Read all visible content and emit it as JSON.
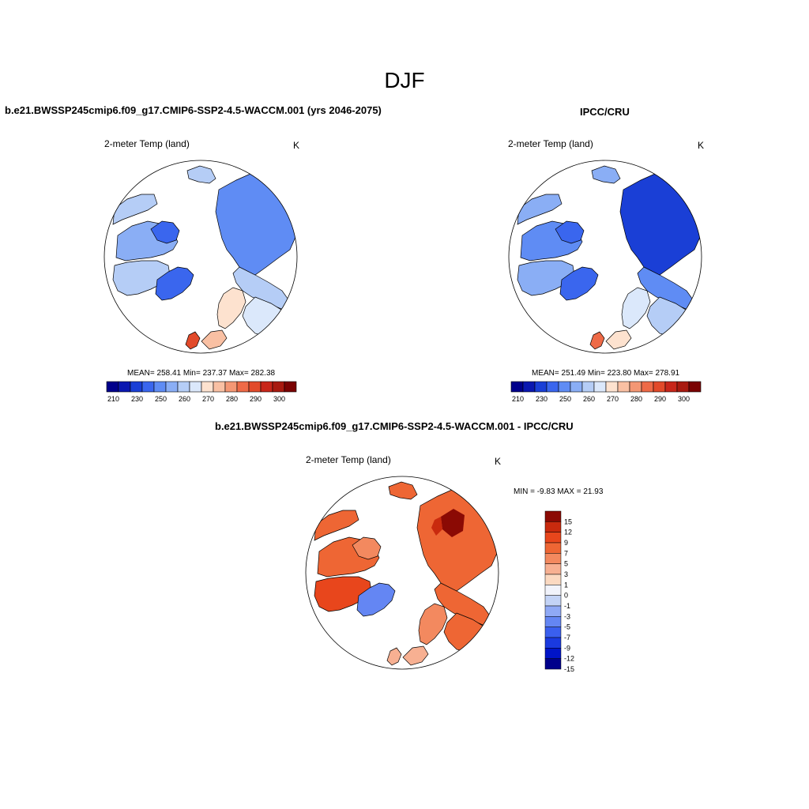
{
  "figure": {
    "title": "DJF",
    "colors": {
      "ocean": "#ffffff",
      "coast": "#000000",
      "abs_scale": [
        "#00008b",
        "#0a18b0",
        "#1a3fd6",
        "#3a66ee",
        "#5f8cf4",
        "#8aaef5",
        "#b5cdf6",
        "#dbe8fb",
        "#fde2cf",
        "#f9c0a3",
        "#f49774",
        "#ee6a47",
        "#e24a2a",
        "#c8261a",
        "#a81a10",
        "#7a0303"
      ],
      "diff_scale": [
        "#00008b",
        "#0014c8",
        "#1a3adf",
        "#3a5fee",
        "#6486f3",
        "#8fa9f5",
        "#c3d3f6",
        "#f1f3fb",
        "#fbd9c1",
        "#f7b092",
        "#f3895f",
        "#ee6634",
        "#e8461c",
        "#c92a0e",
        "#8b0a04"
      ]
    },
    "panels": [
      {
        "id": "model",
        "title": "b.e21.BWSSP245cmip6.f09_g17.CMIP6-SSP2-4.5-WACCM.001 (yrs 2046-2075)",
        "variable": "2-meter Temp (land)",
        "units": "K",
        "stats": "MEAN= 258.41  Min= 237.37  Max= 282.38"
      },
      {
        "id": "obs",
        "title": "IPCC/CRU",
        "variable": "2-meter Temp (land)",
        "units": "K",
        "stats": "MEAN= 251.49  Min= 223.80  Max= 278.91"
      },
      {
        "id": "diff",
        "title": "b.e21.BWSSP245cmip6.f09_g17.CMIP6-SSP2-4.5-WACCM.001 - IPCC/CRU",
        "variable": "2-meter Temp (land)",
        "units": "K",
        "stats": "MIN =  -9.83 MAX =  21.93"
      }
    ]
  },
  "chart_data": [
    {
      "type": "heatmap",
      "projection": "north polar stereographic",
      "title": "b.e21.BWSSP245cmip6.f09_g17.CMIP6-SSP2-4.5-WACCM.001 (yrs 2046-2075)",
      "variable": "2-meter Temp (land)",
      "units": "K",
      "mean": 258.41,
      "min": 237.37,
      "max": 282.38,
      "colorbar": {
        "orientation": "horizontal",
        "levels": [
          210,
          220,
          230,
          240,
          250,
          255,
          260,
          265,
          270,
          275,
          280,
          285,
          290,
          295,
          300
        ],
        "tick_labels": [
          "210",
          "230",
          "250",
          "260",
          "270",
          "280",
          "290",
          "300"
        ]
      }
    },
    {
      "type": "heatmap",
      "projection": "north polar stereographic",
      "title": "IPCC/CRU",
      "variable": "2-meter Temp (land)",
      "units": "K",
      "mean": 251.49,
      "min": 223.8,
      "max": 278.91,
      "colorbar": {
        "orientation": "horizontal",
        "levels": [
          210,
          220,
          230,
          240,
          250,
          255,
          260,
          265,
          270,
          275,
          280,
          285,
          290,
          295,
          300
        ],
        "tick_labels": [
          "210",
          "230",
          "250",
          "260",
          "270",
          "280",
          "290",
          "300"
        ]
      }
    },
    {
      "type": "heatmap",
      "projection": "north polar stereographic",
      "title": "b.e21.BWSSP245cmip6.f09_g17.CMIP6-SSP2-4.5-WACCM.001 - IPCC/CRU",
      "variable": "2-meter Temp (land)",
      "units": "K",
      "min": -9.83,
      "max": 21.93,
      "colorbar": {
        "orientation": "vertical",
        "levels": [
          -15,
          -12,
          -9,
          -7,
          -5,
          -3,
          -1,
          0,
          1,
          3,
          5,
          7,
          9,
          12,
          15
        ],
        "tick_labels": [
          "15",
          "12",
          "9",
          "7",
          "5",
          "3",
          "1",
          "0",
          "-1",
          "-3",
          "-5",
          "-7",
          "-9",
          "-12",
          "-15"
        ]
      }
    }
  ]
}
